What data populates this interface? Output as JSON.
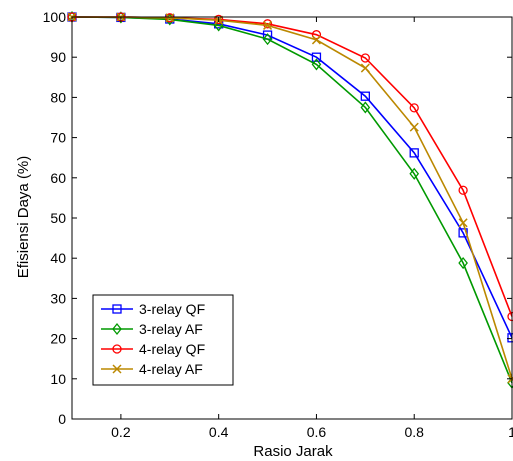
{
  "chart_data": {
    "type": "line",
    "title": "",
    "xlabel": "Rasio Jarak",
    "ylabel": "Efisiensi Daya (%)",
    "xlim": [
      0.1,
      1
    ],
    "ylim": [
      0,
      100
    ],
    "xticks": [
      0.2,
      0.4,
      0.6,
      0.8,
      1
    ],
    "xtick_labels": [
      "0.2",
      "0.4",
      "0.6",
      "0.8",
      "1"
    ],
    "yticks": [
      0,
      10,
      20,
      30,
      40,
      50,
      60,
      70,
      80,
      90,
      100
    ],
    "ytick_labels": [
      "0",
      "10",
      "20",
      "30",
      "40",
      "50",
      "60",
      "70",
      "80",
      "90",
      "100"
    ],
    "grid": false,
    "legend_position": "bottom-left",
    "x": [
      0.1,
      0.2,
      0.3,
      0.4,
      0.5,
      0.6,
      0.7,
      0.8,
      0.9,
      1.0
    ],
    "series": [
      {
        "name": "3-relay QF",
        "color": "#0000ff",
        "marker": "square",
        "values": [
          100,
          99.9,
          99.5,
          98.3,
          95.5,
          90.0,
          80.3,
          66.2,
          46.3,
          20.2
        ]
      },
      {
        "name": "3-relay AF",
        "color": "#009900",
        "marker": "diamond",
        "values": [
          100,
          99.9,
          99.4,
          97.9,
          94.5,
          88.2,
          77.5,
          61.0,
          38.8,
          9.0
        ]
      },
      {
        "name": "4-relay QF",
        "color": "#ff0000",
        "marker": "circle",
        "values": [
          100,
          100,
          99.8,
          99.4,
          98.3,
          95.6,
          89.8,
          77.4,
          56.9,
          25.5
        ]
      },
      {
        "name": "4-relay AF",
        "color": "#bb8800",
        "marker": "x",
        "values": [
          100,
          100,
          99.8,
          99.2,
          97.9,
          94.3,
          87.3,
          72.6,
          48.8,
          10.0
        ]
      }
    ]
  }
}
